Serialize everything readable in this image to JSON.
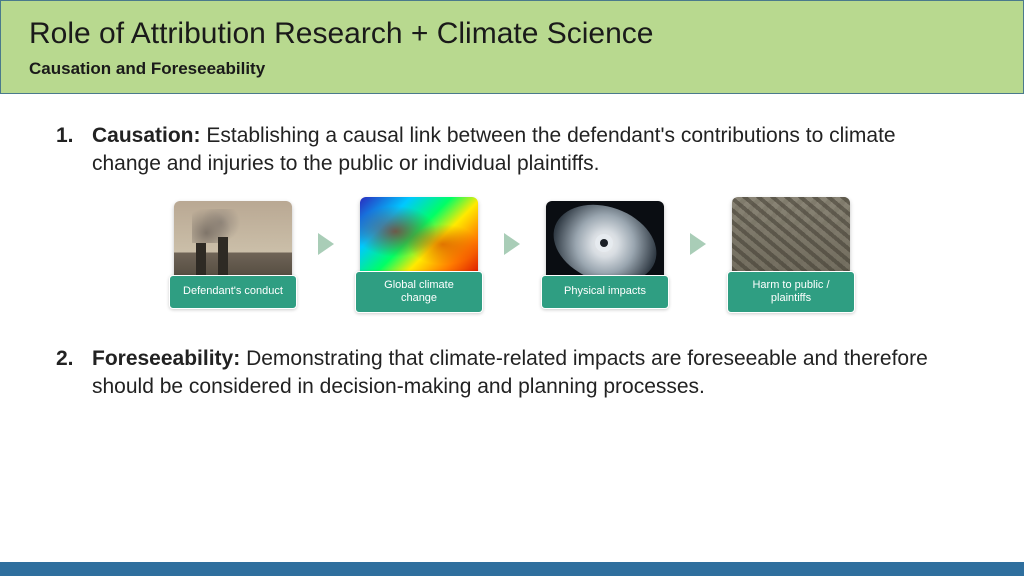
{
  "header": {
    "title": "Role of Attribution Research + Climate Science",
    "subtitle": "Causation and Foreseeability",
    "bg_color": "#b8d98f",
    "border_color": "#4a7a8c"
  },
  "points": [
    {
      "num": "1.",
      "term": "Causation:",
      "text": " Establishing a causal link between the defendant's contributions to climate change and injuries to the public or individual plaintiffs."
    },
    {
      "num": "2.",
      "term": "Foreseeability:",
      "text": " Demonstrating that climate-related impacts are foreseeable and therefore should be considered in decision-making and planning processes."
    }
  ],
  "flow": {
    "label_bg": "#2f9e82",
    "label_color": "#ffffff",
    "arrow_color": "#a9cdb7",
    "steps": [
      {
        "label": "Defendant's conduct",
        "icon": "factory"
      },
      {
        "label": "Global climate change",
        "icon": "heatmap"
      },
      {
        "label": "Physical impacts",
        "icon": "hurricane"
      },
      {
        "label": "Harm to public / plaintiffs",
        "icon": "debris"
      }
    ]
  },
  "bottom_bar_color": "#2f6f9e"
}
